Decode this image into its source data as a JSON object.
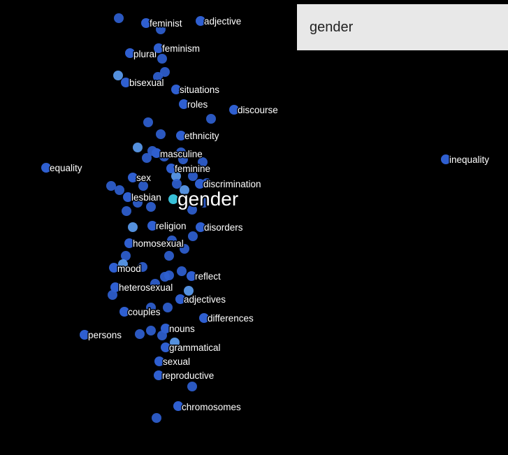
{
  "search": {
    "value": "gender"
  },
  "colors": {
    "background": "#000000",
    "point": "#2f5fd0",
    "point_light": "#5b9cf0",
    "focus": "#38c0d8",
    "label": "#ffffff"
  },
  "focus_word": "gender",
  "labels": [
    "feminist",
    "adjective",
    "plural",
    "feminism",
    "bisexual",
    "situations",
    "roles",
    "discourse",
    "ethnicity",
    "masculine",
    "equality",
    "inequality",
    "feminine",
    "sex",
    "discrimination",
    "lesbian",
    "gender",
    "religion",
    "disorders",
    "homosexual",
    "mood",
    "reflect",
    "heterosexual",
    "adjectives",
    "couples",
    "differences",
    "nouns",
    "persons",
    "grammatical",
    "sexual",
    "reproductive",
    "chromosomes"
  ]
}
